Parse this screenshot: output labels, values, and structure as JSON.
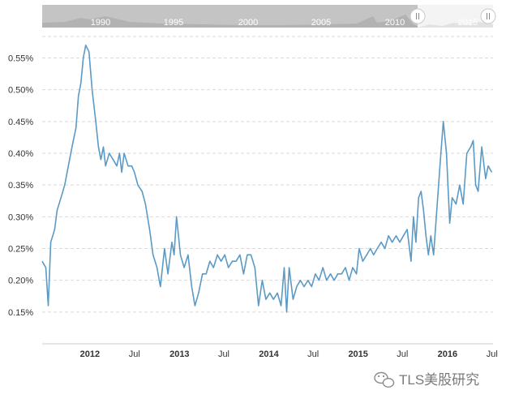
{
  "watermark": {
    "text": "TLS美股研究",
    "icon": "wechat-icon"
  },
  "navigator": {
    "labels": [
      "1990",
      "1995",
      "2000",
      "2005",
      "2010",
      "2015"
    ],
    "handle_icon": "drag-handle-icon"
  },
  "colors": {
    "line": "#5b9ac4",
    "grid": "#d9d9d9",
    "navigator_bg": "#c4c4c4",
    "navigator_selected": "#f4f4f4"
  },
  "chart_data": {
    "type": "line",
    "title": "",
    "xlabel": "",
    "ylabel": "",
    "grid": true,
    "y_ticks": [
      "0.15%",
      "0.20%",
      "0.25%",
      "0.30%",
      "0.35%",
      "0.40%",
      "0.45%",
      "0.50%",
      "0.55%"
    ],
    "y_tick_values": [
      0.15,
      0.2,
      0.25,
      0.3,
      0.35,
      0.4,
      0.45,
      0.5,
      0.55
    ],
    "ylim": [
      0.1,
      0.58
    ],
    "x_ticks": [
      {
        "label": "2012",
        "date": "2012-01-01",
        "major": true
      },
      {
        "label": "Jul",
        "date": "2012-07-01",
        "major": false
      },
      {
        "label": "2013",
        "date": "2013-01-01",
        "major": true
      },
      {
        "label": "Jul",
        "date": "2013-07-01",
        "major": false
      },
      {
        "label": "2014",
        "date": "2014-01-01",
        "major": true
      },
      {
        "label": "Jul",
        "date": "2014-07-01",
        "major": false
      },
      {
        "label": "2015",
        "date": "2015-01-01",
        "major": true
      },
      {
        "label": "Jul",
        "date": "2015-07-01",
        "major": false
      },
      {
        "label": "2016",
        "date": "2016-01-01",
        "major": true
      },
      {
        "label": "Jul",
        "date": "2016-07-01",
        "major": false
      }
    ],
    "xlim": [
      "2011-06-20",
      "2016-07-05"
    ],
    "series": [
      {
        "values": [
          [
            "2011-06-20",
            0.23
          ],
          [
            "2011-07-05",
            0.22
          ],
          [
            "2011-07-15",
            0.16
          ],
          [
            "2011-07-25",
            0.26
          ],
          [
            "2011-08-10",
            0.28
          ],
          [
            "2011-08-20",
            0.31
          ],
          [
            "2011-09-05",
            0.33
          ],
          [
            "2011-09-20",
            0.35
          ],
          [
            "2011-10-05",
            0.38
          ],
          [
            "2011-10-20",
            0.41
          ],
          [
            "2011-11-05",
            0.44
          ],
          [
            "2011-11-15",
            0.49
          ],
          [
            "2011-11-25",
            0.51
          ],
          [
            "2011-12-05",
            0.55
          ],
          [
            "2011-12-15",
            0.57
          ],
          [
            "2011-12-28",
            0.56
          ],
          [
            "2012-01-10",
            0.5
          ],
          [
            "2012-01-25",
            0.45
          ],
          [
            "2012-02-05",
            0.41
          ],
          [
            "2012-02-15",
            0.39
          ],
          [
            "2012-02-25",
            0.41
          ],
          [
            "2012-03-05",
            0.38
          ],
          [
            "2012-03-20",
            0.4
          ],
          [
            "2012-04-05",
            0.39
          ],
          [
            "2012-04-20",
            0.38
          ],
          [
            "2012-05-01",
            0.4
          ],
          [
            "2012-05-10",
            0.37
          ],
          [
            "2012-05-20",
            0.4
          ],
          [
            "2012-06-05",
            0.38
          ],
          [
            "2012-06-20",
            0.38
          ],
          [
            "2012-07-01",
            0.37
          ],
          [
            "2012-07-15",
            0.35
          ],
          [
            "2012-08-01",
            0.34
          ],
          [
            "2012-08-15",
            0.32
          ],
          [
            "2012-09-01",
            0.28
          ],
          [
            "2012-09-15",
            0.24
          ],
          [
            "2012-10-01",
            0.22
          ],
          [
            "2012-10-15",
            0.19
          ],
          [
            "2012-11-01",
            0.25
          ],
          [
            "2012-11-15",
            0.21
          ],
          [
            "2012-12-01",
            0.26
          ],
          [
            "2012-12-10",
            0.24
          ],
          [
            "2012-12-20",
            0.3
          ],
          [
            "2013-01-05",
            0.24
          ],
          [
            "2013-01-20",
            0.22
          ],
          [
            "2013-02-05",
            0.24
          ],
          [
            "2013-02-20",
            0.19
          ],
          [
            "2013-03-05",
            0.16
          ],
          [
            "2013-03-20",
            0.18
          ],
          [
            "2013-04-05",
            0.21
          ],
          [
            "2013-04-20",
            0.21
          ],
          [
            "2013-05-05",
            0.23
          ],
          [
            "2013-05-20",
            0.22
          ],
          [
            "2013-06-05",
            0.24
          ],
          [
            "2013-06-20",
            0.23
          ],
          [
            "2013-07-05",
            0.24
          ],
          [
            "2013-07-20",
            0.22
          ],
          [
            "2013-08-05",
            0.23
          ],
          [
            "2013-08-20",
            0.23
          ],
          [
            "2013-09-05",
            0.24
          ],
          [
            "2013-09-20",
            0.21
          ],
          [
            "2013-10-05",
            0.24
          ],
          [
            "2013-10-20",
            0.24
          ],
          [
            "2013-11-05",
            0.22
          ],
          [
            "2013-11-20",
            0.16
          ],
          [
            "2013-12-05",
            0.2
          ],
          [
            "2013-12-20",
            0.17
          ],
          [
            "2014-01-05",
            0.18
          ],
          [
            "2014-01-20",
            0.17
          ],
          [
            "2014-02-05",
            0.18
          ],
          [
            "2014-02-20",
            0.16
          ],
          [
            "2014-03-05",
            0.22
          ],
          [
            "2014-03-15",
            0.15
          ],
          [
            "2014-03-25",
            0.22
          ],
          [
            "2014-04-10",
            0.17
          ],
          [
            "2014-04-25",
            0.19
          ],
          [
            "2014-05-10",
            0.2
          ],
          [
            "2014-05-25",
            0.19
          ],
          [
            "2014-06-10",
            0.2
          ],
          [
            "2014-06-25",
            0.19
          ],
          [
            "2014-07-10",
            0.21
          ],
          [
            "2014-07-25",
            0.2
          ],
          [
            "2014-08-10",
            0.22
          ],
          [
            "2014-08-25",
            0.2
          ],
          [
            "2014-09-10",
            0.21
          ],
          [
            "2014-09-25",
            0.2
          ],
          [
            "2014-10-10",
            0.21
          ],
          [
            "2014-10-25",
            0.21
          ],
          [
            "2014-11-10",
            0.22
          ],
          [
            "2014-11-25",
            0.2
          ],
          [
            "2014-12-10",
            0.22
          ],
          [
            "2014-12-25",
            0.21
          ],
          [
            "2015-01-05",
            0.25
          ],
          [
            "2015-01-20",
            0.23
          ],
          [
            "2015-02-05",
            0.24
          ],
          [
            "2015-02-20",
            0.25
          ],
          [
            "2015-03-05",
            0.24
          ],
          [
            "2015-03-20",
            0.25
          ],
          [
            "2015-04-05",
            0.26
          ],
          [
            "2015-04-20",
            0.25
          ],
          [
            "2015-05-05",
            0.27
          ],
          [
            "2015-05-20",
            0.26
          ],
          [
            "2015-06-05",
            0.27
          ],
          [
            "2015-06-20",
            0.26
          ],
          [
            "2015-07-05",
            0.27
          ],
          [
            "2015-07-20",
            0.28
          ],
          [
            "2015-08-05",
            0.23
          ],
          [
            "2015-08-15",
            0.3
          ],
          [
            "2015-08-25",
            0.26
          ],
          [
            "2015-09-05",
            0.33
          ],
          [
            "2015-09-15",
            0.34
          ],
          [
            "2015-09-25",
            0.31
          ],
          [
            "2015-10-05",
            0.27
          ],
          [
            "2015-10-15",
            0.24
          ],
          [
            "2015-10-25",
            0.27
          ],
          [
            "2015-11-05",
            0.24
          ],
          [
            "2015-11-20",
            0.32
          ],
          [
            "2015-12-05",
            0.4
          ],
          [
            "2015-12-15",
            0.45
          ],
          [
            "2015-12-28",
            0.4
          ],
          [
            "2016-01-10",
            0.29
          ],
          [
            "2016-01-20",
            0.33
          ],
          [
            "2016-02-05",
            0.32
          ],
          [
            "2016-02-20",
            0.35
          ],
          [
            "2016-03-05",
            0.32
          ],
          [
            "2016-03-20",
            0.4
          ],
          [
            "2016-04-05",
            0.41
          ],
          [
            "2016-04-15",
            0.42
          ],
          [
            "2016-04-25",
            0.35
          ],
          [
            "2016-05-05",
            0.34
          ],
          [
            "2016-05-20",
            0.41
          ],
          [
            "2016-06-05",
            0.36
          ],
          [
            "2016-06-15",
            0.38
          ],
          [
            "2016-06-30",
            0.37
          ]
        ]
      }
    ]
  }
}
